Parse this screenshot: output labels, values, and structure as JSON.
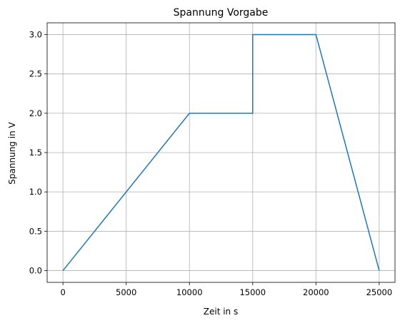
{
  "chart_data": {
    "type": "line",
    "title": "Spannung Vorgabe",
    "xlabel": "Zeit in s",
    "ylabel": "Spannung in V",
    "xlim": [
      -1250,
      26250
    ],
    "ylim": [
      -0.15,
      3.15
    ],
    "xticks": [
      0,
      5000,
      10000,
      15000,
      20000,
      25000
    ],
    "xtick_labels": [
      "0",
      "5000",
      "10000",
      "15000",
      "20000",
      "25000"
    ],
    "yticks": [
      0.0,
      0.5,
      1.0,
      1.5,
      2.0,
      2.5,
      3.0
    ],
    "ytick_labels": [
      "0.0",
      "0.5",
      "1.0",
      "1.5",
      "2.0",
      "2.5",
      "3.0"
    ],
    "grid": true,
    "series": [
      {
        "color": "#1f77b4",
        "x": [
          0,
          10000,
          15000,
          15000,
          20000,
          25000
        ],
        "y": [
          0,
          2,
          2,
          3,
          3,
          0
        ]
      }
    ]
  }
}
